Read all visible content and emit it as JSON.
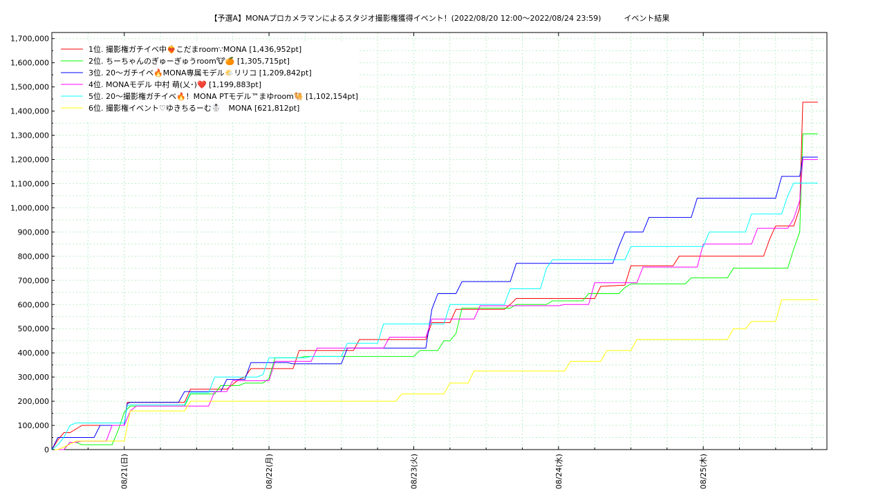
{
  "chart_data": {
    "type": "line",
    "title": "【予選A】MONAプロカメラマンによるスタジオ撮影権獲得イベント！(2022/08/20 12:00〜2022/08/24 23:59)　　　イベント結果",
    "xlabel": "",
    "ylabel": "",
    "x_ticks": [
      "08/21(日)",
      "08/22(月)",
      "08/23(火)",
      "08/24(水)",
      "08/25(木)"
    ],
    "y_ticks": [
      "0",
      "100,000",
      "200,000",
      "300,000",
      "400,000",
      "500,000",
      "600,000",
      "700,000",
      "800,000",
      "900,000",
      "1,000,000",
      "1,100,000",
      "1,200,000",
      "1,300,000",
      "1,400,000",
      "1,500,000",
      "1,600,000",
      "1,700,000"
    ],
    "ylim": [
      0,
      1725000
    ],
    "xlim_hours": [
      -12,
      116.5
    ],
    "grid": true,
    "legend_position": "top-left",
    "series": [
      {
        "name": "1位. 撮影権ガチイベ中❤️‍🔥こだまroom∵MONA [1,436,952pt]",
        "color": "#ff0000",
        "points": [
          [
            -12,
            0
          ],
          [
            -11,
            40000
          ],
          [
            -10,
            70000
          ],
          [
            -9,
            70000
          ],
          [
            -7,
            100000
          ],
          [
            -6,
            100000
          ],
          [
            0,
            100000
          ],
          [
            0.5,
            195000
          ],
          [
            10,
            195000
          ],
          [
            11,
            250000
          ],
          [
            17,
            250000
          ],
          [
            18,
            270000
          ],
          [
            19,
            290000
          ],
          [
            20,
            300000
          ],
          [
            21,
            335000
          ],
          [
            28,
            335000
          ],
          [
            29,
            410000
          ],
          [
            38,
            410000
          ],
          [
            39,
            455000
          ],
          [
            50,
            455000
          ],
          [
            51,
            525000
          ],
          [
            54,
            525000
          ],
          [
            55,
            580000
          ],
          [
            63,
            580000
          ],
          [
            64,
            600000
          ],
          [
            65,
            625000
          ],
          [
            78,
            625000
          ],
          [
            79,
            675000
          ],
          [
            83,
            680000
          ],
          [
            84,
            760000
          ],
          [
            91,
            760000
          ],
          [
            92,
            800000
          ],
          [
            106,
            800000
          ],
          [
            107,
            870000
          ],
          [
            108,
            925000
          ],
          [
            111,
            925000
          ],
          [
            112,
            1000000
          ],
          [
            112.5,
            1436952
          ],
          [
            115,
            1436952
          ]
        ]
      },
      {
        "name": "2位. ちーちゃんのぎゅーぎゅうroom🐮🍊 [1,305,715pt]",
        "color": "#00ff00",
        "points": [
          [
            -12,
            0
          ],
          [
            -10,
            0
          ],
          [
            -9,
            30000
          ],
          [
            -8,
            30000
          ],
          [
            -7,
            20000
          ],
          [
            -4,
            20000
          ],
          [
            -3,
            20000
          ],
          [
            -2,
            20000
          ],
          [
            -1,
            80000
          ],
          [
            0,
            155000
          ],
          [
            1,
            180000
          ],
          [
            10,
            180000
          ],
          [
            11,
            230000
          ],
          [
            15,
            230000
          ],
          [
            16,
            265000
          ],
          [
            19,
            265000
          ],
          [
            20,
            275000
          ],
          [
            23,
            275000
          ],
          [
            24,
            295000
          ],
          [
            25,
            380000
          ],
          [
            29,
            380000
          ],
          [
            30,
            385000
          ],
          [
            48,
            385000
          ],
          [
            49,
            410000
          ],
          [
            52,
            410000
          ],
          [
            53,
            450000
          ],
          [
            54,
            450000
          ],
          [
            55,
            480000
          ],
          [
            56,
            585000
          ],
          [
            64,
            585000
          ],
          [
            65,
            600000
          ],
          [
            70,
            600000
          ],
          [
            71,
            615000
          ],
          [
            76,
            615000
          ],
          [
            77,
            645000
          ],
          [
            82,
            645000
          ],
          [
            83,
            670000
          ],
          [
            84,
            685000
          ],
          [
            93,
            685000
          ],
          [
            94,
            710000
          ],
          [
            100,
            710000
          ],
          [
            101,
            750000
          ],
          [
            110,
            750000
          ],
          [
            111,
            830000
          ],
          [
            112,
            900000
          ],
          [
            112.5,
            1305715
          ],
          [
            115,
            1305715
          ]
        ]
      },
      {
        "name": "3位. 20〜ガチイベ🔥MONA専属モデル🌤️リリコ [1,209,842pt]",
        "color": "#0000ff",
        "points": [
          [
            -12,
            0
          ],
          [
            -11,
            50000
          ],
          [
            -9,
            50000
          ],
          [
            -7,
            50000
          ],
          [
            -5,
            50000
          ],
          [
            -4,
            100000
          ],
          [
            0,
            100000
          ],
          [
            0.5,
            190000
          ],
          [
            1,
            195000
          ],
          [
            9,
            195000
          ],
          [
            10,
            240000
          ],
          [
            16,
            240000
          ],
          [
            17,
            290000
          ],
          [
            20,
            290000
          ],
          [
            21,
            360000
          ],
          [
            27,
            360000
          ],
          [
            28,
            355000
          ],
          [
            36,
            355000
          ],
          [
            37,
            420000
          ],
          [
            50,
            420000
          ],
          [
            51,
            580000
          ],
          [
            52,
            645000
          ],
          [
            55,
            645000
          ],
          [
            56,
            695000
          ],
          [
            64,
            695000
          ],
          [
            65,
            770000
          ],
          [
            81,
            770000
          ],
          [
            82,
            840000
          ],
          [
            83,
            900000
          ],
          [
            86,
            900000
          ],
          [
            87,
            960000
          ],
          [
            94,
            960000
          ],
          [
            95,
            1040000
          ],
          [
            108,
            1040000
          ],
          [
            109,
            1130000
          ],
          [
            112,
            1130000
          ],
          [
            112.5,
            1209842
          ],
          [
            115,
            1209842
          ]
        ]
      },
      {
        "name": "4位. MONAモデル 中村 萌(乂･)❤️ [1,199,883pt]",
        "color": "#ff00ff",
        "points": [
          [
            -12,
            0
          ],
          [
            -10,
            0
          ],
          [
            -9,
            30000
          ],
          [
            -8,
            30000
          ],
          [
            -7,
            35000
          ],
          [
            -3,
            35000
          ],
          [
            -2,
            100000
          ],
          [
            0,
            100000
          ],
          [
            1,
            160000
          ],
          [
            2,
            180000
          ],
          [
            14,
            180000
          ],
          [
            15,
            240000
          ],
          [
            17,
            240000
          ],
          [
            18,
            285000
          ],
          [
            24,
            285000
          ],
          [
            25,
            365000
          ],
          [
            31,
            365000
          ],
          [
            32,
            420000
          ],
          [
            43,
            420000
          ],
          [
            44,
            465000
          ],
          [
            50,
            465000
          ],
          [
            51,
            540000
          ],
          [
            58,
            540000
          ],
          [
            59,
            595000
          ],
          [
            68,
            595000
          ],
          [
            69,
            595000
          ],
          [
            72,
            595000
          ],
          [
            73,
            600000
          ],
          [
            77,
            600000
          ],
          [
            78,
            690000
          ],
          [
            85,
            690000
          ],
          [
            86,
            755000
          ],
          [
            95,
            755000
          ],
          [
            96,
            850000
          ],
          [
            104,
            850000
          ],
          [
            105,
            915000
          ],
          [
            110,
            915000
          ],
          [
            111,
            955000
          ],
          [
            112,
            1030000
          ],
          [
            112.5,
            1199883
          ],
          [
            115,
            1199883
          ]
        ]
      },
      {
        "name": "5位. 20〜撮影権ガチイベ🔥！MONA PTモデル™まゆroom🐫 [1,102,154pt]",
        "color": "#00ffff",
        "points": [
          [
            -12,
            0
          ],
          [
            -11,
            20000
          ],
          [
            -10,
            50000
          ],
          [
            -9,
            100000
          ],
          [
            -8,
            110000
          ],
          [
            0,
            110000
          ],
          [
            0.5,
            180000
          ],
          [
            1,
            185000
          ],
          [
            10,
            185000
          ],
          [
            11,
            235000
          ],
          [
            14,
            235000
          ],
          [
            15,
            300000
          ],
          [
            22,
            300000
          ],
          [
            23,
            310000
          ],
          [
            24,
            380000
          ],
          [
            30,
            380000
          ],
          [
            31,
            385000
          ],
          [
            36,
            385000
          ],
          [
            37,
            440000
          ],
          [
            42,
            440000
          ],
          [
            43,
            520000
          ],
          [
            53,
            520000
          ],
          [
            54,
            600000
          ],
          [
            63,
            600000
          ],
          [
            64,
            665000
          ],
          [
            69,
            665000
          ],
          [
            70,
            750000
          ],
          [
            71,
            785000
          ],
          [
            83,
            785000
          ],
          [
            84,
            840000
          ],
          [
            96,
            840000
          ],
          [
            97,
            900000
          ],
          [
            103,
            900000
          ],
          [
            104,
            975000
          ],
          [
            109,
            975000
          ],
          [
            110,
            1050000
          ],
          [
            111,
            1102154
          ],
          [
            115,
            1102154
          ]
        ]
      },
      {
        "name": "6位. 撮影権イベント♡ゆきちるーむ☃️　MONA [621,812pt]",
        "color": "#ffff00",
        "points": [
          [
            -12,
            0
          ],
          [
            -11,
            0
          ],
          [
            -10,
            10000
          ],
          [
            -8,
            35000
          ],
          [
            0,
            35000
          ],
          [
            1,
            160000
          ],
          [
            10,
            160000
          ],
          [
            11,
            200000
          ],
          [
            45,
            200000
          ],
          [
            46,
            230000
          ],
          [
            53,
            230000
          ],
          [
            54,
            275000
          ],
          [
            57,
            275000
          ],
          [
            58,
            325000
          ],
          [
            73,
            325000
          ],
          [
            74,
            365000
          ],
          [
            79,
            365000
          ],
          [
            80,
            410000
          ],
          [
            84,
            410000
          ],
          [
            85,
            455000
          ],
          [
            100,
            455000
          ],
          [
            101,
            500000
          ],
          [
            103,
            500000
          ],
          [
            104,
            530000
          ],
          [
            108,
            530000
          ],
          [
            109,
            620000
          ],
          [
            115,
            620000
          ]
        ]
      }
    ]
  }
}
